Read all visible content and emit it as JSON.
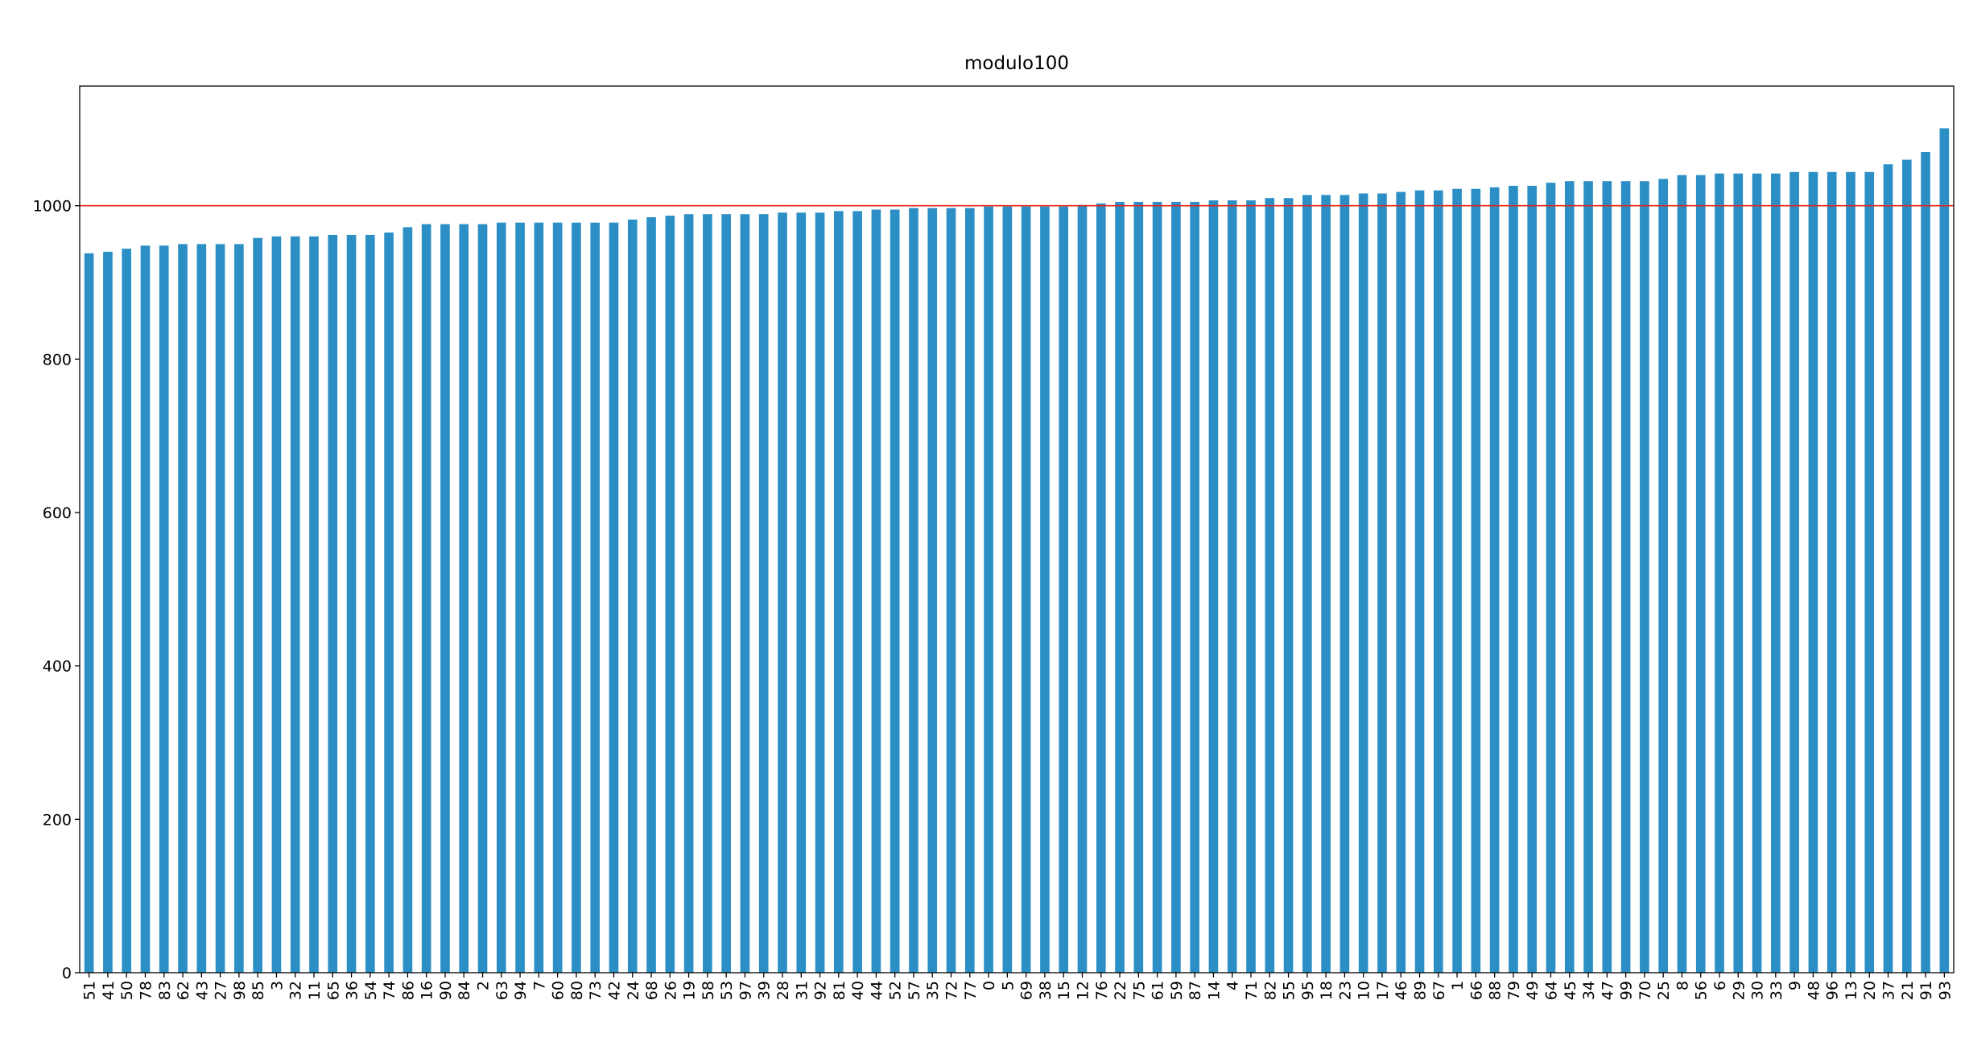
{
  "chart_data": {
    "type": "bar",
    "title": "modulo100",
    "categories": [
      "51",
      "41",
      "50",
      "78",
      "83",
      "62",
      "43",
      "27",
      "98",
      "85",
      "3",
      "32",
      "11",
      "65",
      "36",
      "54",
      "74",
      "86",
      "16",
      "90",
      "84",
      "2",
      "63",
      "94",
      "7",
      "60",
      "80",
      "73",
      "42",
      "24",
      "68",
      "26",
      "19",
      "58",
      "53",
      "97",
      "39",
      "28",
      "31",
      "92",
      "81",
      "40",
      "44",
      "52",
      "57",
      "35",
      "72",
      "77",
      "0",
      "5",
      "69",
      "38",
      "15",
      "12",
      "76",
      "22",
      "75",
      "61",
      "59",
      "87",
      "14",
      "4",
      "71",
      "82",
      "55",
      "95",
      "18",
      "23",
      "10",
      "17",
      "46",
      "89",
      "67",
      "1",
      "66",
      "88",
      "79",
      "49",
      "64",
      "45",
      "34",
      "47",
      "99",
      "70",
      "25",
      "8",
      "56",
      "6",
      "29",
      "30",
      "33",
      "9",
      "48",
      "96",
      "13",
      "20",
      "37",
      "21",
      "91",
      "93"
    ],
    "values": [
      938,
      940,
      944,
      948,
      948,
      950,
      950,
      950,
      950,
      958,
      960,
      960,
      960,
      962,
      962,
      962,
      965,
      972,
      976,
      976,
      976,
      976,
      978,
      978,
      978,
      978,
      978,
      978,
      978,
      982,
      985,
      987,
      989,
      989,
      989,
      989,
      989,
      991,
      991,
      991,
      993,
      993,
      995,
      995,
      997,
      997,
      997,
      997,
      999,
      999,
      999,
      999,
      999,
      1001,
      1003,
      1005,
      1005,
      1005,
      1005,
      1005,
      1007,
      1007,
      1007,
      1010,
      1010,
      1014,
      1014,
      1014,
      1016,
      1016,
      1018,
      1020,
      1020,
      1022,
      1022,
      1024,
      1026,
      1026,
      1030,
      1032,
      1032,
      1032,
      1032,
      1032,
      1035,
      1040,
      1040,
      1042,
      1042,
      1042,
      1042,
      1044,
      1044,
      1044,
      1044,
      1044,
      1054,
      1060,
      1070,
      1101
    ],
    "color": "#2b8fc5",
    "ylim": [
      0,
      1156
    ],
    "yticks": [
      0,
      200,
      400,
      600,
      800,
      1000
    ],
    "hline": {
      "value": 1000,
      "color": "#e8231a"
    }
  }
}
